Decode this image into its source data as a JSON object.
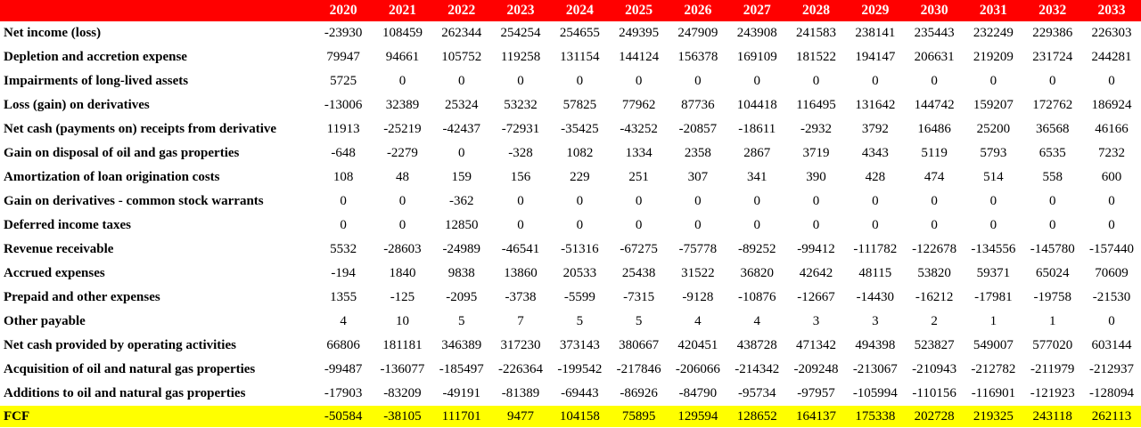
{
  "colors": {
    "header_bg": "#ff0000",
    "header_text": "#ffffff",
    "fcf_bg": "#ffff00"
  },
  "header": {
    "label": "",
    "years": [
      "2020",
      "2021",
      "2022",
      "2023",
      "2024",
      "2025",
      "2026",
      "2027",
      "2028",
      "2029",
      "2030",
      "2031",
      "2032",
      "2033"
    ]
  },
  "rows": [
    {
      "label": "Net income (loss)",
      "values": [
        "-23930",
        "108459",
        "262344",
        "254254",
        "254655",
        "249395",
        "247909",
        "243908",
        "241583",
        "238141",
        "235443",
        "232249",
        "229386",
        "226303"
      ]
    },
    {
      "label": "Depletion and accretion expense",
      "values": [
        "79947",
        "94661",
        "105752",
        "119258",
        "131154",
        "144124",
        "156378",
        "169109",
        "181522",
        "194147",
        "206631",
        "219209",
        "231724",
        "244281"
      ]
    },
    {
      "label": "Impairments of long-lived assets",
      "values": [
        "5725",
        "0",
        "0",
        "0",
        "0",
        "0",
        "0",
        "0",
        "0",
        "0",
        "0",
        "0",
        "0",
        "0"
      ]
    },
    {
      "label": "Loss (gain) on derivatives",
      "values": [
        "-13006",
        "32389",
        "25324",
        "53232",
        "57825",
        "77962",
        "87736",
        "104418",
        "116495",
        "131642",
        "144742",
        "159207",
        "172762",
        "186924"
      ]
    },
    {
      "label": "Net cash (payments on) receipts from derivative",
      "values": [
        "11913",
        "-25219",
        "-42437",
        "-72931",
        "-35425",
        "-43252",
        "-20857",
        "-18611",
        "-2932",
        "3792",
        "16486",
        "25200",
        "36568",
        "46166"
      ]
    },
    {
      "label": "Gain on disposal of oil and gas properties",
      "values": [
        "-648",
        "-2279",
        "0",
        "-328",
        "1082",
        "1334",
        "2358",
        "2867",
        "3719",
        "4343",
        "5119",
        "5793",
        "6535",
        "7232"
      ]
    },
    {
      "label": "Amortization of loan origination costs",
      "values": [
        "108",
        "48",
        "159",
        "156",
        "229",
        "251",
        "307",
        "341",
        "390",
        "428",
        "474",
        "514",
        "558",
        "600"
      ]
    },
    {
      "label": "Gain on derivatives - common stock warrants",
      "values": [
        "0",
        "0",
        "-362",
        "0",
        "0",
        "0",
        "0",
        "0",
        "0",
        "0",
        "0",
        "0",
        "0",
        "0"
      ]
    },
    {
      "label": "Deferred income taxes",
      "values": [
        "0",
        "0",
        "12850",
        "0",
        "0",
        "0",
        "0",
        "0",
        "0",
        "0",
        "0",
        "0",
        "0",
        "0"
      ]
    },
    {
      "label": "Revenue receivable",
      "values": [
        "5532",
        "-28603",
        "-24989",
        "-46541",
        "-51316",
        "-67275",
        "-75778",
        "-89252",
        "-99412",
        "-111782",
        "-122678",
        "-134556",
        "-145780",
        "-157440"
      ]
    },
    {
      "label": "Accrued expenses",
      "values": [
        "-194",
        "1840",
        "9838",
        "13860",
        "20533",
        "25438",
        "31522",
        "36820",
        "42642",
        "48115",
        "53820",
        "59371",
        "65024",
        "70609"
      ]
    },
    {
      "label": "Prepaid and other expenses",
      "values": [
        "1355",
        "-125",
        "-2095",
        "-3738",
        "-5599",
        "-7315",
        "-9128",
        "-10876",
        "-12667",
        "-14430",
        "-16212",
        "-17981",
        "-19758",
        "-21530"
      ]
    },
    {
      "label": "Other payable",
      "values": [
        "4",
        "10",
        "5",
        "7",
        "5",
        "5",
        "4",
        "4",
        "3",
        "3",
        "2",
        "1",
        "1",
        "0"
      ]
    },
    {
      "label": "Net cash provided by operating activities",
      "values": [
        "66806",
        "181181",
        "346389",
        "317230",
        "373143",
        "380667",
        "420451",
        "438728",
        "471342",
        "494398",
        "523827",
        "549007",
        "577020",
        "603144"
      ]
    },
    {
      "label": "Acquisition of oil and natural gas properties",
      "values": [
        "-99487",
        "-136077",
        "-185497",
        "-226364",
        "-199542",
        "-217846",
        "-206066",
        "-214342",
        "-209248",
        "-213067",
        "-210943",
        "-212782",
        "-211979",
        "-212937"
      ]
    },
    {
      "label": "Additions to oil and natural gas properties",
      "values": [
        "-17903",
        "-83209",
        "-49191",
        "-81389",
        "-69443",
        "-86926",
        "-84790",
        "-95734",
        "-97957",
        "-105994",
        "-110156",
        "-116901",
        "-121923",
        "-128094"
      ]
    }
  ],
  "fcf": {
    "label": "FCF",
    "values": [
      "-50584",
      "-38105",
      "111701",
      "9477",
      "104158",
      "75895",
      "129594",
      "128652",
      "164137",
      "175338",
      "202728",
      "219325",
      "243118",
      "262113"
    ]
  }
}
